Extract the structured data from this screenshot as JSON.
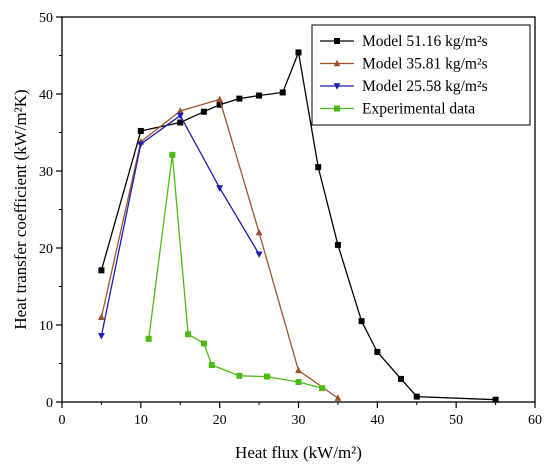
{
  "chart_data": {
    "type": "line",
    "xlabel": "Heat flux (kW/m²)",
    "ylabel": "Heat transfer coefficient (kW/m²K)",
    "xlim": [
      0,
      60
    ],
    "ylim": [
      0,
      50
    ],
    "xticks": [
      0,
      10,
      20,
      30,
      40,
      50,
      60
    ],
    "yticks": [
      0,
      10,
      20,
      30,
      40,
      50
    ],
    "grid": false,
    "legend_position": "top-right",
    "series": [
      {
        "name": "Model 51.16 kg/m²s",
        "color": "#000000",
        "marker": "square",
        "x": [
          5,
          10,
          15,
          18,
          20,
          22.5,
          25,
          28,
          30,
          32.5,
          35,
          38,
          40,
          43,
          45,
          55
        ],
        "y": [
          17.1,
          35.2,
          36.3,
          37.7,
          38.6,
          39.4,
          39.8,
          40.2,
          45.4,
          30.5,
          20.4,
          10.5,
          6.5,
          3.0,
          0.7,
          0.3
        ]
      },
      {
        "name": "Model 35.81 kg/m²s",
        "color": "#A0522D",
        "marker": "triangle-up",
        "x": [
          5,
          10,
          15,
          20,
          25,
          30,
          35
        ],
        "y": [
          11.0,
          33.8,
          37.8,
          39.3,
          22.0,
          4.1,
          0.5
        ]
      },
      {
        "name": "Model 25.58 kg/m²s",
        "color": "#1C1CB8",
        "marker": "triangle-down",
        "x": [
          5,
          10,
          15,
          20,
          25
        ],
        "y": [
          8.6,
          33.5,
          37.2,
          27.8,
          19.2
        ]
      },
      {
        "name": "Experimental data",
        "color": "#4CBB17",
        "marker": "square",
        "x": [
          11,
          14,
          16,
          18,
          19,
          22.5,
          26,
          30,
          33
        ],
        "y": [
          8.2,
          32.1,
          8.8,
          7.6,
          4.8,
          3.4,
          3.3,
          2.6,
          1.8
        ]
      }
    ]
  }
}
